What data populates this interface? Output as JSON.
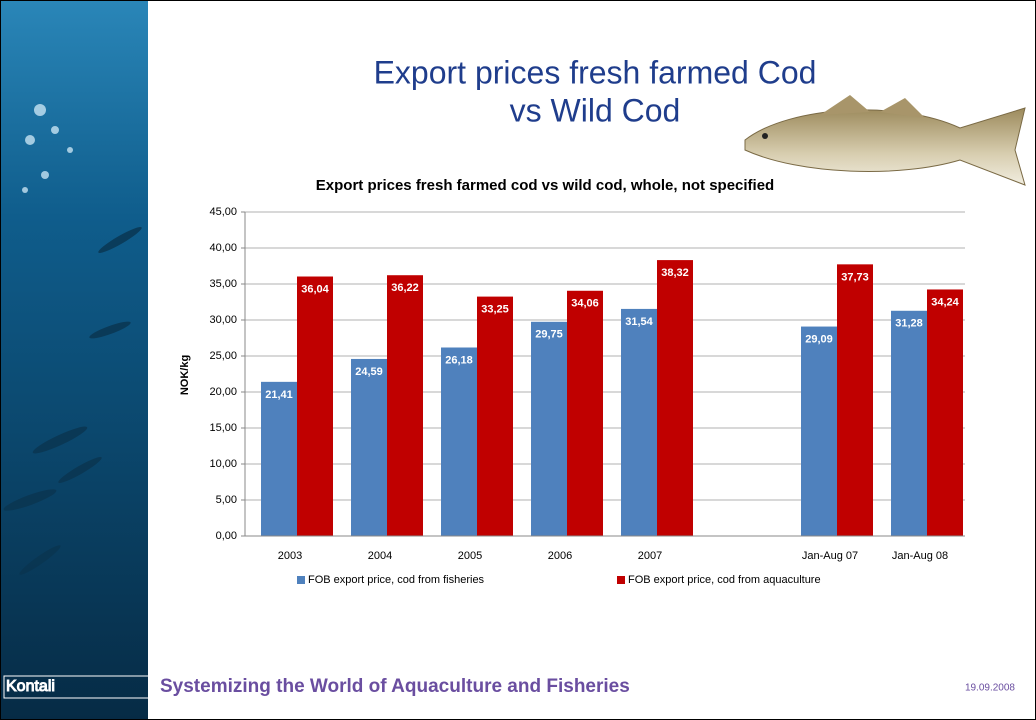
{
  "slide": {
    "title_lines": [
      "Export prices fresh farmed Cod",
      "vs Wild Cod"
    ],
    "logo": "Kontali",
    "footer": "Systemizing the World of Aquaculture and Fisheries",
    "date": "19.09.2008"
  },
  "chart_data": {
    "type": "bar",
    "title": "Export prices fresh farmed cod vs wild cod, whole, not specified",
    "y_label": "NOK/kg",
    "categories": [
      "2003",
      "2004",
      "2005",
      "2006",
      "2007",
      null,
      "Jan-Aug 07",
      "Jan-Aug 08"
    ],
    "series": [
      {
        "name": "FOB export price, cod from fisheries",
        "color": "#4f81bd",
        "values": [
          21.41,
          24.59,
          26.18,
          29.75,
          31.54,
          null,
          29.09,
          31.28
        ],
        "value_labels": [
          "21,41",
          "24,59",
          "26,18",
          "29,75",
          "31,54",
          null,
          "29,09",
          "31,28"
        ]
      },
      {
        "name": "FOB export price, cod from aquaculture",
        "color": "#c00000",
        "values": [
          36.04,
          36.22,
          33.25,
          34.06,
          38.32,
          null,
          37.73,
          34.24
        ],
        "value_labels": [
          "36,04",
          "36,22",
          "33,25",
          "34,06",
          "38,32",
          null,
          "37,73",
          "34,24"
        ]
      }
    ],
    "ylim": [
      0,
      45
    ],
    "yticks": [
      {
        "value": 0,
        "label": "0,00"
      },
      {
        "value": 5,
        "label": "5,00"
      },
      {
        "value": 10,
        "label": "10,00"
      },
      {
        "value": 15,
        "label": "15,00"
      },
      {
        "value": 20,
        "label": "20,00"
      },
      {
        "value": 25,
        "label": "25,00"
      },
      {
        "value": 30,
        "label": "30,00"
      },
      {
        "value": 35,
        "label": "35,00"
      },
      {
        "value": 40,
        "label": "40,00"
      },
      {
        "value": 45,
        "label": "45,00"
      }
    ],
    "grid": true,
    "legend": "bottom"
  }
}
